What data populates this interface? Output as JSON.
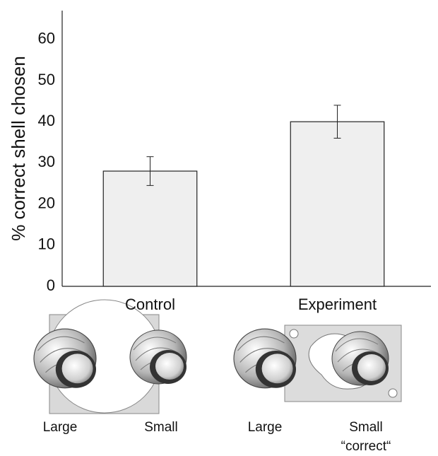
{
  "chart_data": {
    "type": "bar",
    "ylabel": "% correct shell chosen",
    "categories": [
      "Control",
      "Experiment"
    ],
    "values": [
      28,
      40
    ],
    "errors": [
      3.5,
      4
    ],
    "color": "#efefef",
    "ylim": [
      0,
      67
    ],
    "yticks": [
      0,
      10,
      20,
      30,
      40,
      50,
      60
    ],
    "grid": false,
    "illustration_labels": [
      "Large",
      "Small",
      "Large",
      "Small",
      "“correct“"
    ]
  }
}
